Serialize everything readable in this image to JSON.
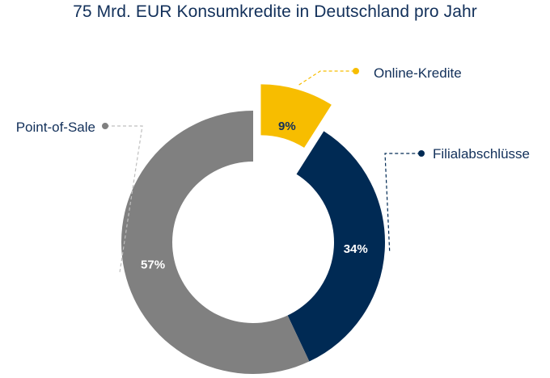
{
  "chart_data": {
    "type": "pie",
    "variant": "donut",
    "title": "75 Mrd. EUR Konsumkredite in Deutschland pro Jahr",
    "slices": [
      {
        "label": "Online-Kredite",
        "value": 9,
        "value_label": "9%",
        "color": "#f7bd00",
        "text_color": "#12305a",
        "exploded": true
      },
      {
        "label": "Filialabschlüsse",
        "value": 34,
        "value_label": "34%",
        "color": "#002a54",
        "text_color": "#ffffff",
        "exploded": false
      },
      {
        "label": "Point-of-Sale",
        "value": 57,
        "value_label": "57%",
        "color": "#808080",
        "text_color": "#ffffff",
        "exploded": false
      }
    ],
    "legend": "callouts"
  }
}
